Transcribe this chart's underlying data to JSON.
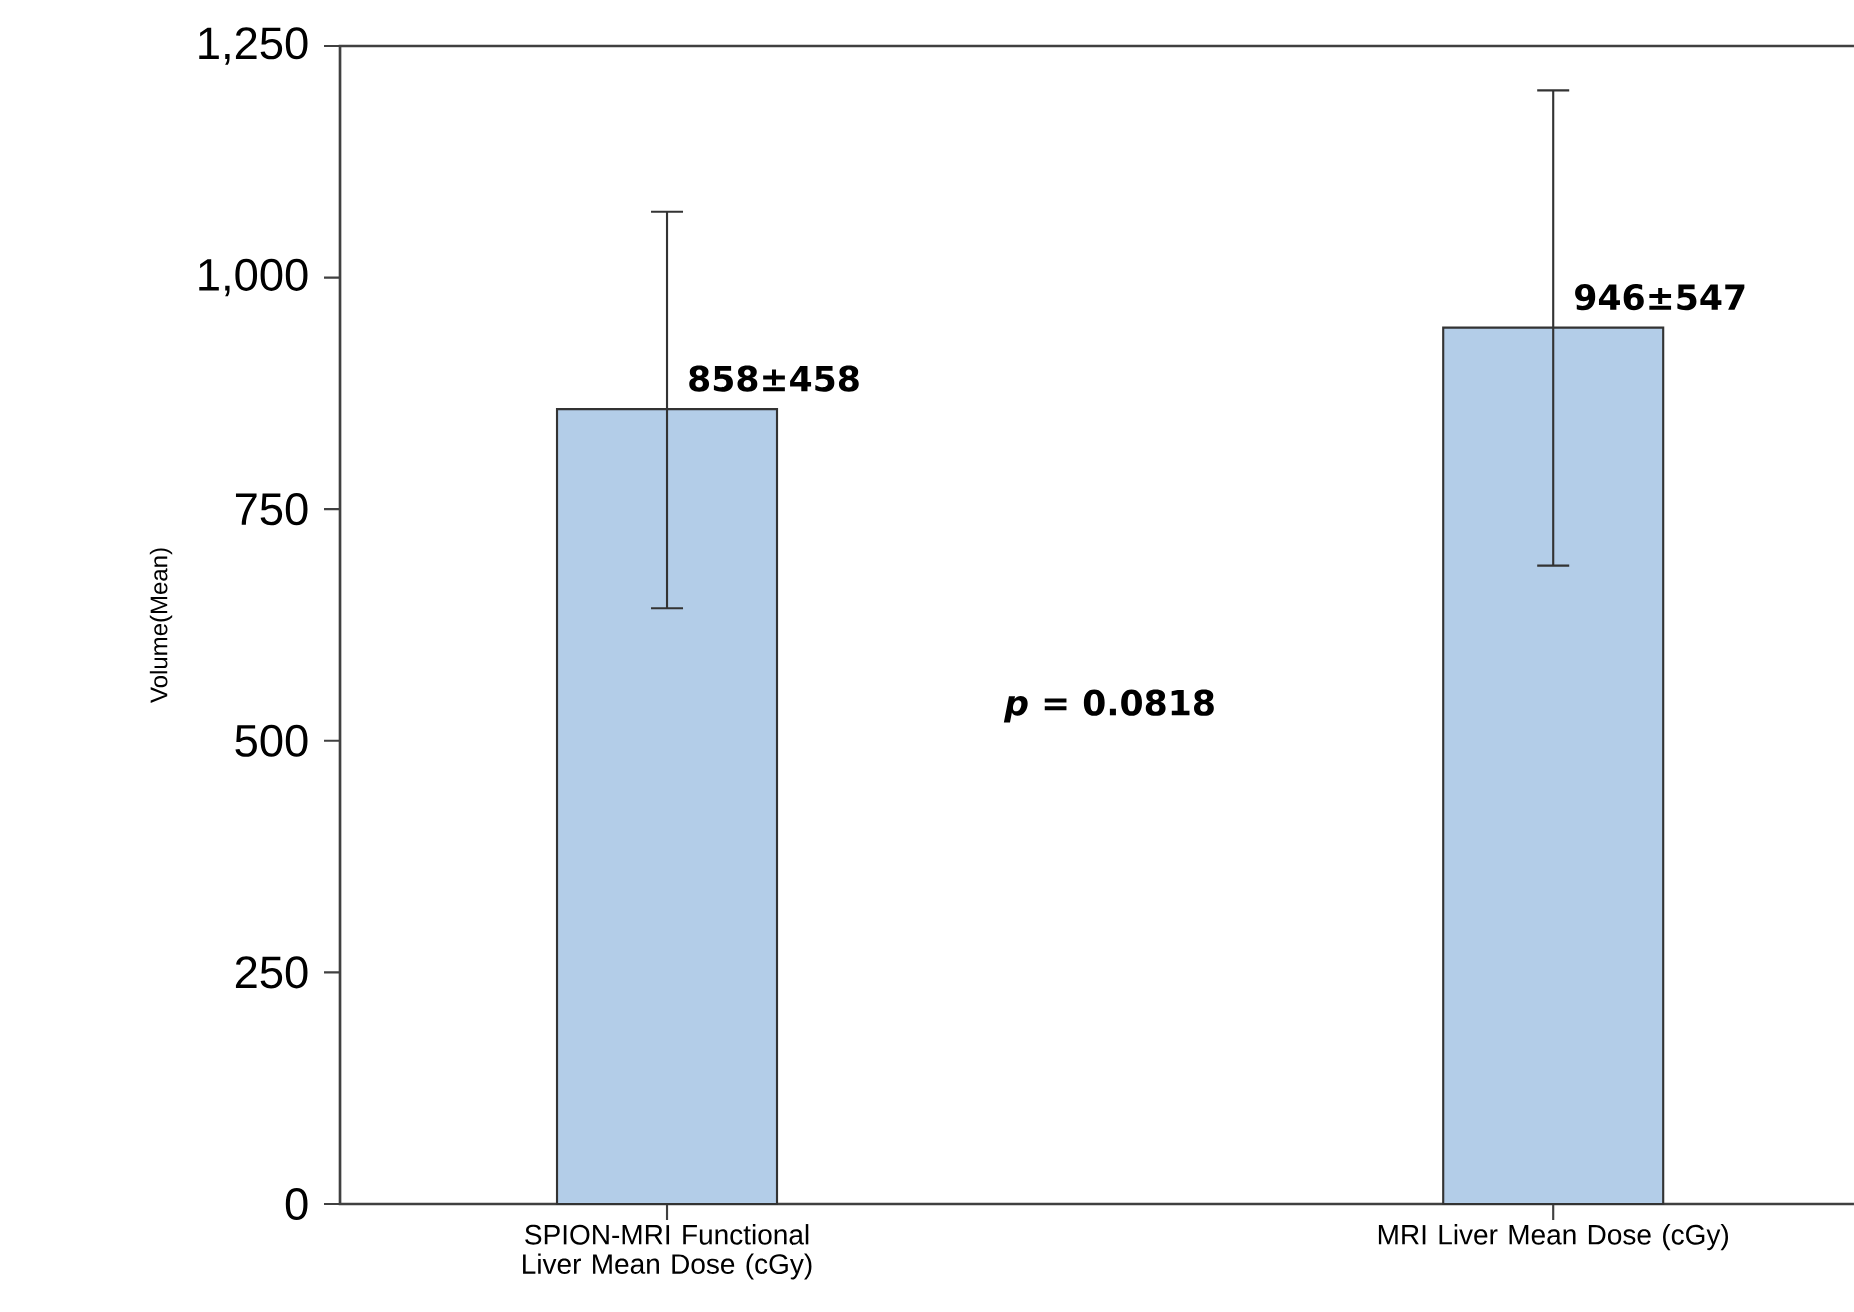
{
  "chart_data": {
    "type": "bar",
    "ylabel": "Volume(Mean)",
    "categories": [
      "SPION-MRI Functional Liver Mean Dose (cGy)",
      "MRI Liver Mean Dose (cGy)"
    ],
    "values": [
      858,
      946
    ],
    "errors": [
      [
        643,
        1071
      ],
      [
        689,
        1202
      ]
    ],
    "value_labels": [
      "858±458",
      "946±547"
    ],
    "color": "#b3cde8",
    "ylim": [
      0,
      1250
    ],
    "yticks": [
      0,
      {
        "value": 250,
        "label": "250"
      },
      {
        "value": 500,
        "label": "500"
      },
      {
        "value": 750,
        "label": "750"
      },
      {
        "value": 1000,
        "label": "1,000"
      },
      {
        "value": 1250,
        "label": "1,250"
      }
    ],
    "annotations": [
      "*p* = 0.0818"
    ],
    "grid": false
  }
}
